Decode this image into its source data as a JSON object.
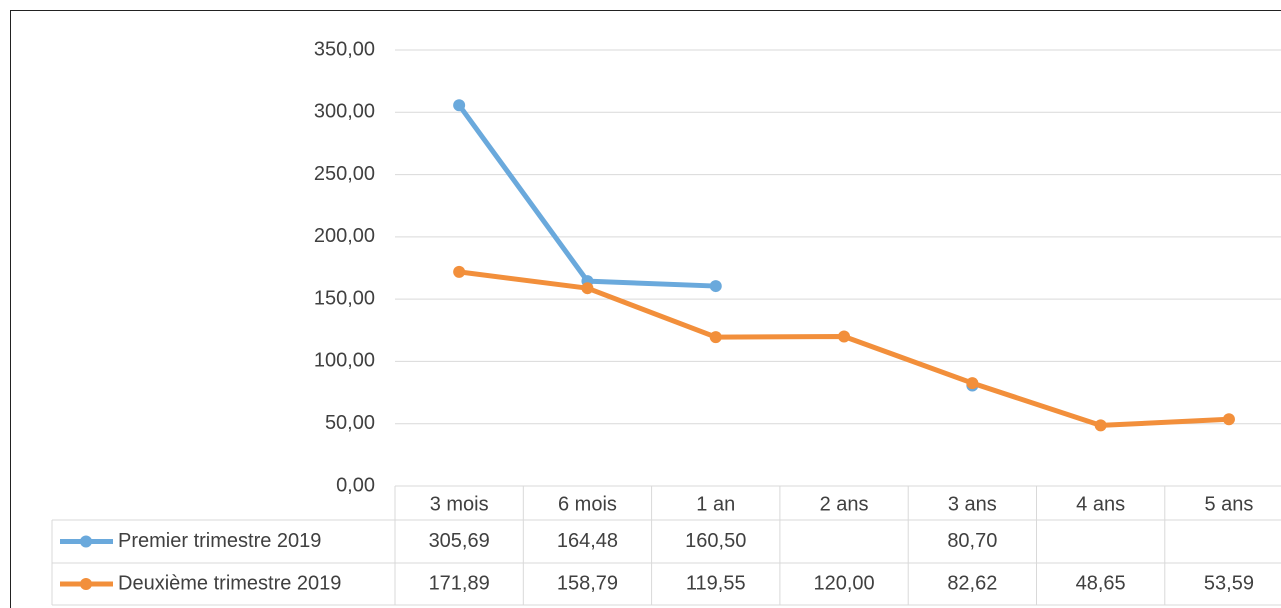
{
  "chart_data": {
    "type": "line",
    "categories": [
      "3 mois",
      "6 mois",
      "1 an",
      "2 ans",
      "3 ans",
      "4 ans",
      "5 ans"
    ],
    "series": [
      {
        "name": "Premier trimestre 2019",
        "color": "#6aa9dc",
        "values": [
          305.69,
          164.48,
          160.5,
          null,
          80.7,
          null,
          null
        ],
        "value_labels": [
          "305,69",
          "164,48",
          "160,50",
          null,
          "80,70",
          null,
          null
        ]
      },
      {
        "name": "Deuxième trimestre 2019",
        "color": "#f28f3b",
        "values": [
          171.89,
          158.79,
          119.55,
          120.0,
          82.62,
          48.65,
          53.59
        ],
        "value_labels": [
          "171,89",
          "158,79",
          "119,55",
          "120,00",
          "82,62",
          "48,65",
          "53,59"
        ]
      }
    ],
    "ylim": [
      0,
      350
    ],
    "yticks": [
      {
        "value": 0,
        "label": "0,00"
      },
      {
        "value": 50,
        "label": "50,00"
      },
      {
        "value": 100,
        "label": "100,00"
      },
      {
        "value": 150,
        "label": "150,00"
      },
      {
        "value": 200,
        "label": "200,00"
      },
      {
        "value": 250,
        "label": "250,00"
      },
      {
        "value": 300,
        "label": "300,00"
      },
      {
        "value": 350,
        "label": "350,00"
      }
    ],
    "grid": true
  }
}
